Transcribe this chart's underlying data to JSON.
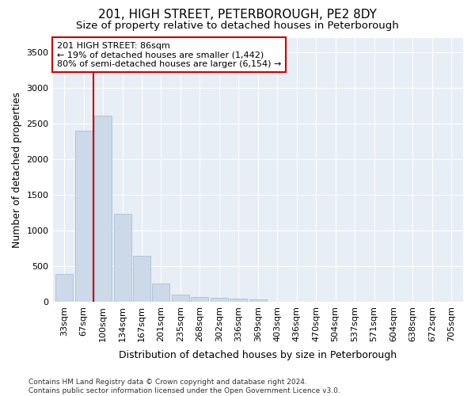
{
  "title": "201, HIGH STREET, PETERBOROUGH, PE2 8DY",
  "subtitle": "Size of property relative to detached houses in Peterborough",
  "xlabel": "Distribution of detached houses by size in Peterborough",
  "ylabel": "Number of detached properties",
  "footnote": "Contains HM Land Registry data © Crown copyright and database right 2024.\nContains public sector information licensed under the Open Government Licence v3.0.",
  "categories": [
    "33sqm",
    "67sqm",
    "100sqm",
    "134sqm",
    "167sqm",
    "201sqm",
    "235sqm",
    "268sqm",
    "302sqm",
    "336sqm",
    "369sqm",
    "403sqm",
    "436sqm",
    "470sqm",
    "504sqm",
    "537sqm",
    "571sqm",
    "604sqm",
    "638sqm",
    "672sqm",
    "705sqm"
  ],
  "values": [
    390,
    2400,
    2610,
    1230,
    640,
    255,
    100,
    65,
    55,
    45,
    30,
    0,
    0,
    0,
    0,
    0,
    0,
    0,
    0,
    0,
    0
  ],
  "bar_color": "#ccd9e8",
  "bar_edge_color": "#a8c0d8",
  "vline_x": 1.5,
  "vline_color": "#cc0000",
  "annotation_text": "201 HIGH STREET: 86sqm\n← 19% of detached houses are smaller (1,442)\n80% of semi-detached houses are larger (6,154) →",
  "annotation_box_facecolor": "#ffffff",
  "annotation_box_edgecolor": "#cc0000",
  "ylim": [
    0,
    3700
  ],
  "yticks": [
    0,
    500,
    1000,
    1500,
    2000,
    2500,
    3000,
    3500
  ],
  "background_color": "#ffffff",
  "plot_bg_color": "#e8eef5",
  "title_fontsize": 11,
  "subtitle_fontsize": 9.5,
  "axis_label_fontsize": 9,
  "tick_fontsize": 8,
  "footnote_fontsize": 6.5
}
